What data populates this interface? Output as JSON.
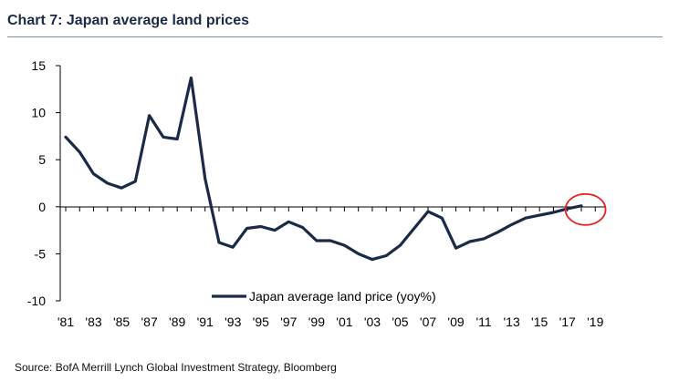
{
  "header": {
    "title": "Chart 7: Japan average land prices"
  },
  "footer": {
    "source": "Source: BofA Merrill Lynch Global Investment Strategy, Bloomberg"
  },
  "colors": {
    "line": "#1b2a47",
    "highlight": "#e4262a",
    "axis": "#000000"
  },
  "chart_data": {
    "type": "line",
    "title": "Chart 7: Japan average land prices",
    "xlabel": "",
    "ylabel": "",
    "ylim": [
      -10,
      15
    ],
    "yticks": [
      15,
      10,
      5,
      0,
      -5,
      -10
    ],
    "xlim": [
      1981,
      2020
    ],
    "xticks": [
      1981,
      1983,
      1985,
      1987,
      1989,
      1991,
      1993,
      1995,
      1997,
      1999,
      2001,
      2003,
      2005,
      2007,
      2009,
      2011,
      2013,
      2015,
      2017,
      2019
    ],
    "xtick_labels": [
      "'81",
      "'83",
      "'85",
      "'87",
      "'89",
      "'91",
      "'93",
      "'95",
      "'97",
      "'99",
      "'01",
      "'03",
      "'05",
      "'07",
      "'09",
      "'11",
      "'13",
      "'15",
      "'17",
      "'19"
    ],
    "grid": false,
    "legend": "bottom-center",
    "series": [
      {
        "name": "Japan average land price (yoy%)",
        "x": [
          1981,
          1982,
          1983,
          1984,
          1985,
          1986,
          1987,
          1988,
          1989,
          1990,
          1991,
          1992,
          1993,
          1994,
          1995,
          1996,
          1997,
          1998,
          1999,
          2000,
          2001,
          2002,
          2003,
          2004,
          2005,
          2006,
          2007,
          2008,
          2009,
          2010,
          2011,
          2012,
          2013,
          2014,
          2015,
          2016,
          2017,
          2018
        ],
        "values": [
          7.4,
          5.8,
          3.5,
          2.5,
          2.0,
          2.7,
          9.7,
          7.4,
          7.2,
          13.7,
          3.0,
          -3.8,
          -4.3,
          -2.3,
          -2.1,
          -2.5,
          -1.6,
          -2.2,
          -3.6,
          -3.6,
          -4.1,
          -5.0,
          -5.6,
          -5.2,
          -4.1,
          -2.3,
          -0.5,
          -1.2,
          -4.4,
          -3.7,
          -3.4,
          -2.7,
          -1.9,
          -1.2,
          -0.9,
          -0.6,
          -0.2,
          0.1
        ]
      }
    ],
    "annotations": [
      {
        "type": "circle",
        "x": 2018.3,
        "y": 0,
        "color": "#e4262a"
      }
    ]
  }
}
